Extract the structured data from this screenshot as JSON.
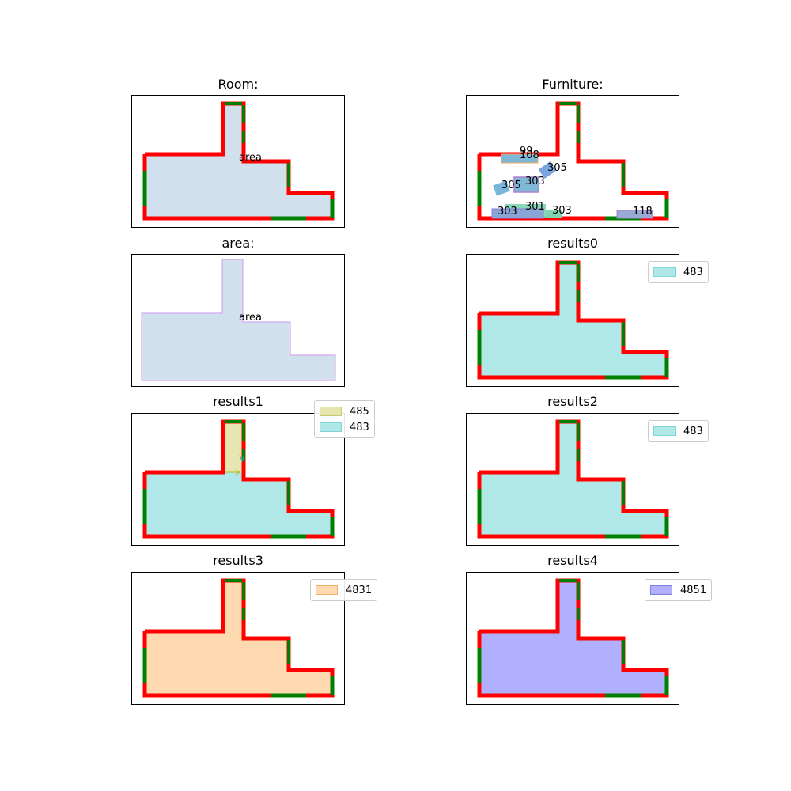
{
  "figure": {
    "panels": [
      {
        "id": "room",
        "title": "Room:",
        "label": "area"
      },
      {
        "id": "furniture",
        "title": "Furniture:",
        "items": [
          {
            "label": "99",
            "color": "#f5a962"
          },
          {
            "label": "108",
            "color": "#7fb7d6"
          },
          {
            "label": "305",
            "color": "#5b8fd6"
          },
          {
            "label": "305",
            "color": "#6aaed6"
          },
          {
            "label": "303",
            "color": "#b080d0"
          },
          {
            "label": "301",
            "color": "#7ed3b2"
          },
          {
            "label": "303",
            "color": "#8a7fd6"
          },
          {
            "label": "303",
            "color": "#7ed3b2"
          },
          {
            "label": "118",
            "color": "#b080d0"
          }
        ]
      },
      {
        "id": "area",
        "title": "area:",
        "label": "area"
      },
      {
        "id": "results0",
        "title": "results0",
        "legend": [
          {
            "label": "483",
            "color": "#b0e8e8"
          }
        ]
      },
      {
        "id": "results1",
        "title": "results1",
        "legend": [
          {
            "label": "485",
            "color": "#e6e6b0"
          },
          {
            "label": "483",
            "color": "#b0e8e8"
          }
        ]
      },
      {
        "id": "results2",
        "title": "results2",
        "legend": [
          {
            "label": "483",
            "color": "#b0e8e8"
          }
        ]
      },
      {
        "id": "results3",
        "title": "results3",
        "legend": [
          {
            "label": "4831",
            "color": "#ffdab0"
          }
        ]
      },
      {
        "id": "results4",
        "title": "results4",
        "legend": [
          {
            "label": "4851",
            "color": "#b0b0ff"
          }
        ]
      }
    ],
    "colors": {
      "wall": "#ff0000",
      "door": "#008000",
      "room_fill": "#d0e0ec",
      "area_outline": "#d8a8f0",
      "cyan_fill": "#b0e8e8",
      "yellow_fill": "#e6e6b0",
      "orange_fill": "#ffdab0",
      "blue_fill": "#b0b0ff"
    }
  }
}
